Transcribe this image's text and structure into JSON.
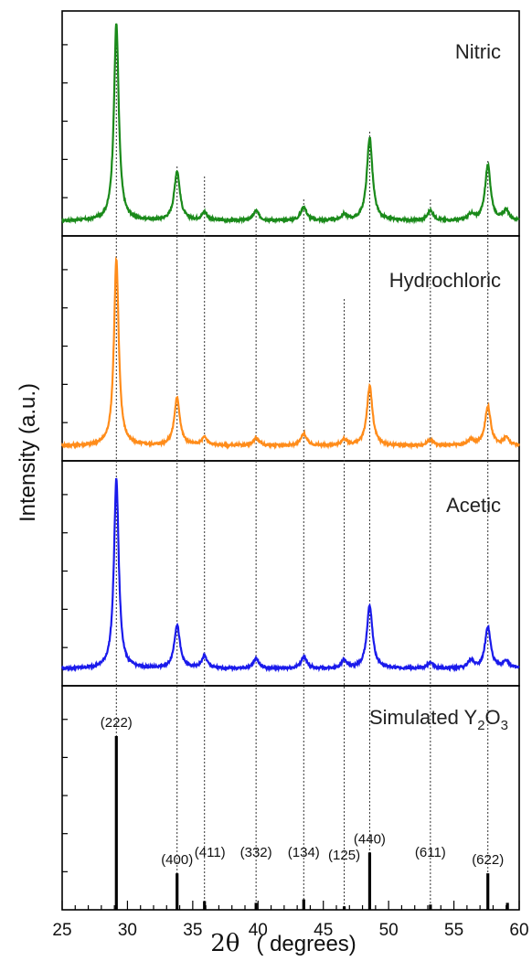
{
  "chart_data": {
    "type": "line",
    "ylabel": "Intensity (a.u.)",
    "xlabel_symbol": "2θ",
    "xlabel_unit": "( degrees)",
    "xlim": [
      25,
      60
    ],
    "xticks": [
      25,
      30,
      35,
      40,
      45,
      50,
      55,
      60
    ],
    "reference_lines_x": [
      29.15,
      33.8,
      35.9,
      39.85,
      43.5,
      46.6,
      48.55,
      53.2,
      57.6
    ],
    "panels": [
      {
        "name": "Nitric",
        "color": "#1a8a1a",
        "baseline": 0.03,
        "peaks": [
          [
            29.15,
            1.0
          ],
          [
            33.8,
            0.25
          ],
          [
            35.9,
            0.04
          ],
          [
            39.85,
            0.05
          ],
          [
            43.5,
            0.07
          ],
          [
            46.6,
            0.03
          ],
          [
            48.55,
            0.42
          ],
          [
            53.2,
            0.05
          ],
          [
            56.3,
            0.03
          ],
          [
            57.6,
            0.28
          ],
          [
            59.0,
            0.05
          ]
        ]
      },
      {
        "name": "Hydrochloric",
        "color": "#ff8c1a",
        "baseline": 0.03,
        "peaks": [
          [
            29.15,
            0.94
          ],
          [
            33.8,
            0.24
          ],
          [
            35.9,
            0.04
          ],
          [
            39.85,
            0.04
          ],
          [
            43.5,
            0.06
          ],
          [
            46.6,
            0.03
          ],
          [
            48.55,
            0.3
          ],
          [
            53.2,
            0.03
          ],
          [
            56.3,
            0.03
          ],
          [
            57.6,
            0.2
          ],
          [
            59.0,
            0.04
          ]
        ]
      },
      {
        "name": "Acetic",
        "color": "#1a1aeb",
        "baseline": 0.04,
        "peaks": [
          [
            29.15,
            0.96
          ],
          [
            33.8,
            0.22
          ],
          [
            35.9,
            0.06
          ],
          [
            39.85,
            0.05
          ],
          [
            43.5,
            0.06
          ],
          [
            46.6,
            0.04
          ],
          [
            48.55,
            0.32
          ],
          [
            53.2,
            0.03
          ],
          [
            56.3,
            0.04
          ],
          [
            57.6,
            0.21
          ],
          [
            59.0,
            0.04
          ]
        ]
      }
    ],
    "simulated": {
      "name_prefix": "Simulated Y",
      "name_sub1": "2",
      "name_mid": "O",
      "name_sub2": "3",
      "color": "#000000",
      "sticks": [
        {
          "x": 29.15,
          "intensity": 1.0,
          "label": "(222)"
        },
        {
          "x": 33.8,
          "intensity": 0.21,
          "label": "(400)"
        },
        {
          "x": 35.9,
          "intensity": 0.05,
          "label": "(411)"
        },
        {
          "x": 39.85,
          "intensity": 0.04,
          "label": "(332)"
        },
        {
          "x": 43.5,
          "intensity": 0.06,
          "label": "(134)"
        },
        {
          "x": 46.6,
          "intensity": 0.02,
          "label": "(125)"
        },
        {
          "x": 48.55,
          "intensity": 0.33,
          "label": "(440)"
        },
        {
          "x": 53.2,
          "intensity": 0.03,
          "label": "(611)"
        },
        {
          "x": 57.6,
          "intensity": 0.21,
          "label": "(622)"
        },
        {
          "x": 59.1,
          "intensity": 0.04,
          "label": ""
        }
      ]
    }
  }
}
